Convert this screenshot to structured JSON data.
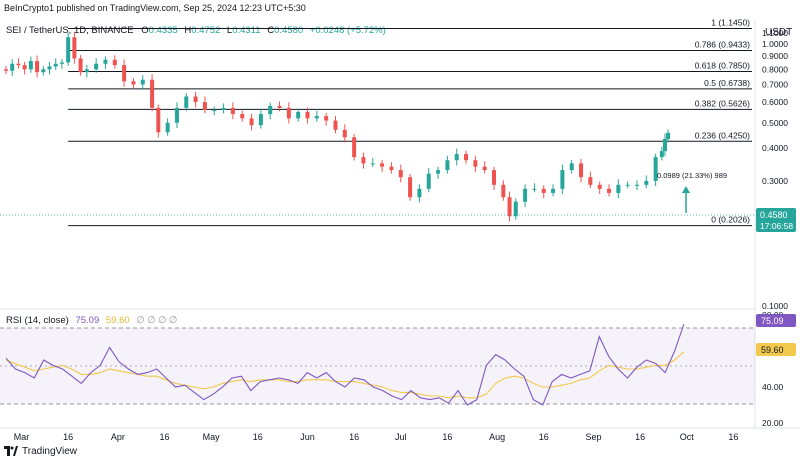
{
  "header": {
    "watermark": "BeInCrypto1 published on TradingView.com, Sep 25, 2024 12:23 UTC+5:30",
    "symbol": "SEI / TetherUS, 1D, BINANCE",
    "o_label": "O",
    "o": "0.4335",
    "h_label": "H",
    "h": "0.4752",
    "l_label": "L",
    "l": "0.4311",
    "c_label": "C",
    "c": "0.4580",
    "change": "+0.0248 (+5.72%)"
  },
  "price_axis": {
    "currency": "USDT",
    "ticks": [
      "1.1000",
      "1.0000",
      "0.9000",
      "0.8000",
      "0.7000",
      "0.6000",
      "0.5000",
      "0.4000",
      "0.3000",
      "0.2000",
      "0.1000"
    ],
    "last_price": "0.4580",
    "countdown": "17:06:58"
  },
  "fib_levels": [
    {
      "label": "1 (1.1450)",
      "value": 1.145
    },
    {
      "label": "0.786 (0.9433)",
      "value": 0.9433
    },
    {
      "label": "0.618 (0.7850)",
      "value": 0.785
    },
    {
      "label": "0.5 (0.6738)",
      "value": 0.6738
    },
    {
      "label": "0.382 (0.5626)",
      "value": 0.5626
    },
    {
      "label": "0.236 (0.4250)",
      "value": 0.425
    },
    {
      "label": "0 (0.2026)",
      "value": 0.2026
    }
  ],
  "measure_label": "0.0989 (21.33%) 989",
  "rsi": {
    "title": "RSI (14, close)",
    "value": "75.09",
    "ma_value": "59.60",
    "ticks": [
      "80.00",
      "40.00",
      "20.00"
    ],
    "placeholders": "∅ ∅ ∅ ∅"
  },
  "time_axis": [
    "Mar",
    "16",
    "Apr",
    "16",
    "May",
    "16",
    "Jun",
    "16",
    "Jul",
    "16",
    "Aug",
    "16",
    "Sep",
    "16",
    "Oct",
    "16"
  ],
  "footer": {
    "brand": "TradingView"
  },
  "colors": {
    "up": "#26a69a",
    "down": "#ef5350",
    "rsi": "#7e57c2",
    "rsi_ma": "#f2c94c",
    "fib": "#131722"
  },
  "chart_data": [
    {
      "type": "candlestick",
      "title": "SEI / TetherUS, 1D, BINANCE",
      "x_ticks": [
        "Mar",
        "16",
        "Apr",
        "16",
        "May",
        "16",
        "Jun",
        "16",
        "Jul",
        "16",
        "Aug",
        "16",
        "Sep",
        "16",
        "Oct",
        "16"
      ],
      "ylim": [
        0.1,
        1.15
      ],
      "scale": "log",
      "series": [
        {
          "name": "SEI / TetherUS",
          "close_path": [
            [
              "2024-02-25",
              0.79
            ],
            [
              "2024-02-27",
              0.84
            ],
            [
              "2024-02-29",
              0.83
            ],
            [
              "2024-03-02",
              0.8
            ],
            [
              "2024-03-04",
              0.86
            ],
            [
              "2024-03-06",
              0.78
            ],
            [
              "2024-03-08",
              0.8
            ],
            [
              "2024-03-10",
              0.82
            ],
            [
              "2024-03-12",
              0.84
            ],
            [
              "2024-03-14",
              0.85
            ],
            [
              "2024-03-16",
              1.06
            ],
            [
              "2024-03-18",
              0.88
            ],
            [
              "2024-03-20",
              0.78
            ],
            [
              "2024-03-22",
              0.8
            ],
            [
              "2024-03-25",
              0.84
            ],
            [
              "2024-03-28",
              0.87
            ],
            [
              "2024-03-31",
              0.83
            ],
            [
              "2024-04-03",
              0.72
            ],
            [
              "2024-04-06",
              0.7
            ],
            [
              "2024-04-09",
              0.73
            ],
            [
              "2024-04-12",
              0.57
            ],
            [
              "2024-04-14",
              0.46
            ],
            [
              "2024-04-17",
              0.5
            ],
            [
              "2024-04-20",
              0.57
            ],
            [
              "2024-04-23",
              0.63
            ],
            [
              "2024-04-26",
              0.6
            ],
            [
              "2024-04-29",
              0.56
            ],
            [
              "2024-05-02",
              0.56
            ],
            [
              "2024-05-05",
              0.57
            ],
            [
              "2024-05-08",
              0.54
            ],
            [
              "2024-05-11",
              0.52
            ],
            [
              "2024-05-14",
              0.49
            ],
            [
              "2024-05-17",
              0.54
            ],
            [
              "2024-05-20",
              0.58
            ],
            [
              "2024-05-23",
              0.57
            ],
            [
              "2024-05-26",
              0.52
            ],
            [
              "2024-05-29",
              0.55
            ],
            [
              "2024-06-01",
              0.52
            ],
            [
              "2024-06-04",
              0.53
            ],
            [
              "2024-06-07",
              0.51
            ],
            [
              "2024-06-10",
              0.47
            ],
            [
              "2024-06-13",
              0.44
            ],
            [
              "2024-06-16",
              0.37
            ],
            [
              "2024-06-19",
              0.35
            ],
            [
              "2024-06-22",
              0.35
            ],
            [
              "2024-06-25",
              0.34
            ],
            [
              "2024-06-28",
              0.33
            ],
            [
              "2024-07-01",
              0.31
            ],
            [
              "2024-07-04",
              0.26
            ],
            [
              "2024-07-07",
              0.28
            ],
            [
              "2024-07-10",
              0.32
            ],
            [
              "2024-07-13",
              0.33
            ],
            [
              "2024-07-16",
              0.36
            ],
            [
              "2024-07-19",
              0.38
            ],
            [
              "2024-07-22",
              0.36
            ],
            [
              "2024-07-25",
              0.34
            ],
            [
              "2024-07-28",
              0.33
            ],
            [
              "2024-07-31",
              0.29
            ],
            [
              "2024-08-03",
              0.26
            ],
            [
              "2024-08-05",
              0.22
            ],
            [
              "2024-08-07",
              0.25
            ],
            [
              "2024-08-10",
              0.28
            ],
            [
              "2024-08-13",
              0.28
            ],
            [
              "2024-08-16",
              0.27
            ],
            [
              "2024-08-19",
              0.28
            ],
            [
              "2024-08-22",
              0.33
            ],
            [
              "2024-08-25",
              0.35
            ],
            [
              "2024-08-28",
              0.31
            ],
            [
              "2024-08-31",
              0.29
            ],
            [
              "2024-09-03",
              0.28
            ],
            [
              "2024-09-06",
              0.27
            ],
            [
              "2024-09-09",
              0.29
            ],
            [
              "2024-09-12",
              0.29
            ],
            [
              "2024-09-15",
              0.29
            ],
            [
              "2024-09-18",
              0.3
            ],
            [
              "2024-09-21",
              0.37
            ],
            [
              "2024-09-23",
              0.39
            ],
            [
              "2024-09-24",
              0.4335
            ],
            [
              "2024-09-25",
              0.458
            ]
          ]
        }
      ],
      "fib_retracement": [
        1.145,
        0.9433,
        0.785,
        0.6738,
        0.5626,
        0.425,
        0.2026
      ]
    },
    {
      "type": "line",
      "title": "RSI (14, close)",
      "ylim": [
        20,
        80
      ],
      "bands": [
        70,
        50,
        30
      ],
      "series": [
        {
          "name": "RSI",
          "values": [
            56,
            50,
            48,
            45,
            55,
            52,
            50,
            46,
            42,
            48,
            52,
            62,
            54,
            50,
            47,
            48,
            50,
            45,
            40,
            41,
            37,
            33,
            36,
            40,
            45,
            46,
            38,
            43,
            44,
            45,
            44,
            42,
            48,
            45,
            48,
            43,
            40,
            45,
            44,
            40,
            38,
            35,
            33,
            38,
            34,
            33,
            34,
            31,
            38,
            30,
            33,
            52,
            58,
            55,
            50,
            46,
            33,
            30,
            43,
            47,
            45,
            47,
            49,
            68,
            57,
            50,
            45,
            51,
            55,
            53,
            48,
            60,
            75
          ]
        },
        {
          "name": "RSI-based MA",
          "values": [
            55,
            53,
            51,
            49,
            50,
            51,
            52,
            50,
            47,
            47,
            48,
            50,
            49,
            48,
            47,
            46,
            46,
            44,
            42,
            41,
            40,
            39,
            40,
            42,
            43,
            44,
            43,
            44,
            44,
            44,
            43,
            43,
            44,
            44,
            44,
            43,
            43,
            43,
            42,
            41,
            40,
            38,
            37,
            37,
            36,
            35,
            35,
            34,
            35,
            34,
            34,
            36,
            42,
            45,
            46,
            45,
            42,
            40,
            40,
            41,
            42,
            44,
            45,
            49,
            52,
            51,
            50,
            50,
            51,
            52,
            52,
            55,
            59.6
          ]
        }
      ]
    }
  ]
}
